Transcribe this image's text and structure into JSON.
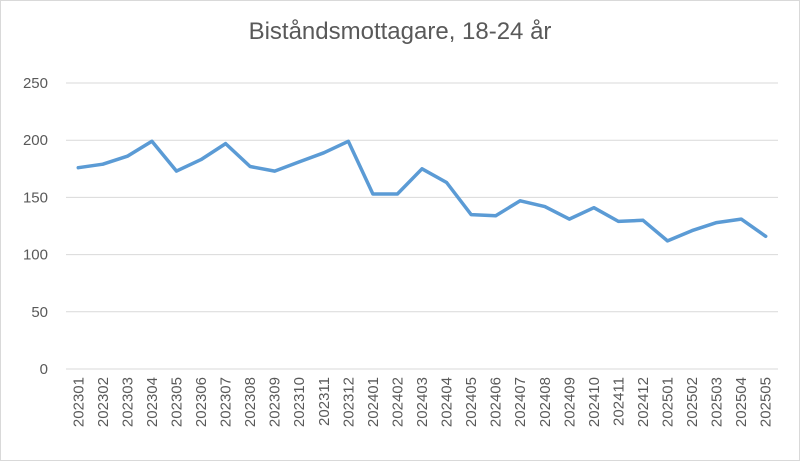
{
  "chart_data": {
    "type": "line",
    "title": "Biståndsmottagare, 18-24 år",
    "xlabel": "",
    "ylabel": "",
    "ylim": [
      0,
      250
    ],
    "yticks": [
      0,
      50,
      100,
      150,
      200,
      250
    ],
    "grid": true,
    "legend": "none",
    "line_color": "#5b9bd5",
    "categories": [
      "202301",
      "202302",
      "202303",
      "202304",
      "202305",
      "202306",
      "202307",
      "202308",
      "202309",
      "202310",
      "202311",
      "202312",
      "202401",
      "202402",
      "202403",
      "202404",
      "202405",
      "202406",
      "202407",
      "202408",
      "202409",
      "202410",
      "202411",
      "202412",
      "202501",
      "202502",
      "202503",
      "202504",
      "202505"
    ],
    "values": [
      176,
      179,
      186,
      199,
      173,
      183,
      197,
      177,
      173,
      181,
      189,
      199,
      153,
      153,
      175,
      163,
      135,
      134,
      147,
      142,
      131,
      141,
      129,
      130,
      112,
      121,
      128,
      131,
      116
    ]
  }
}
